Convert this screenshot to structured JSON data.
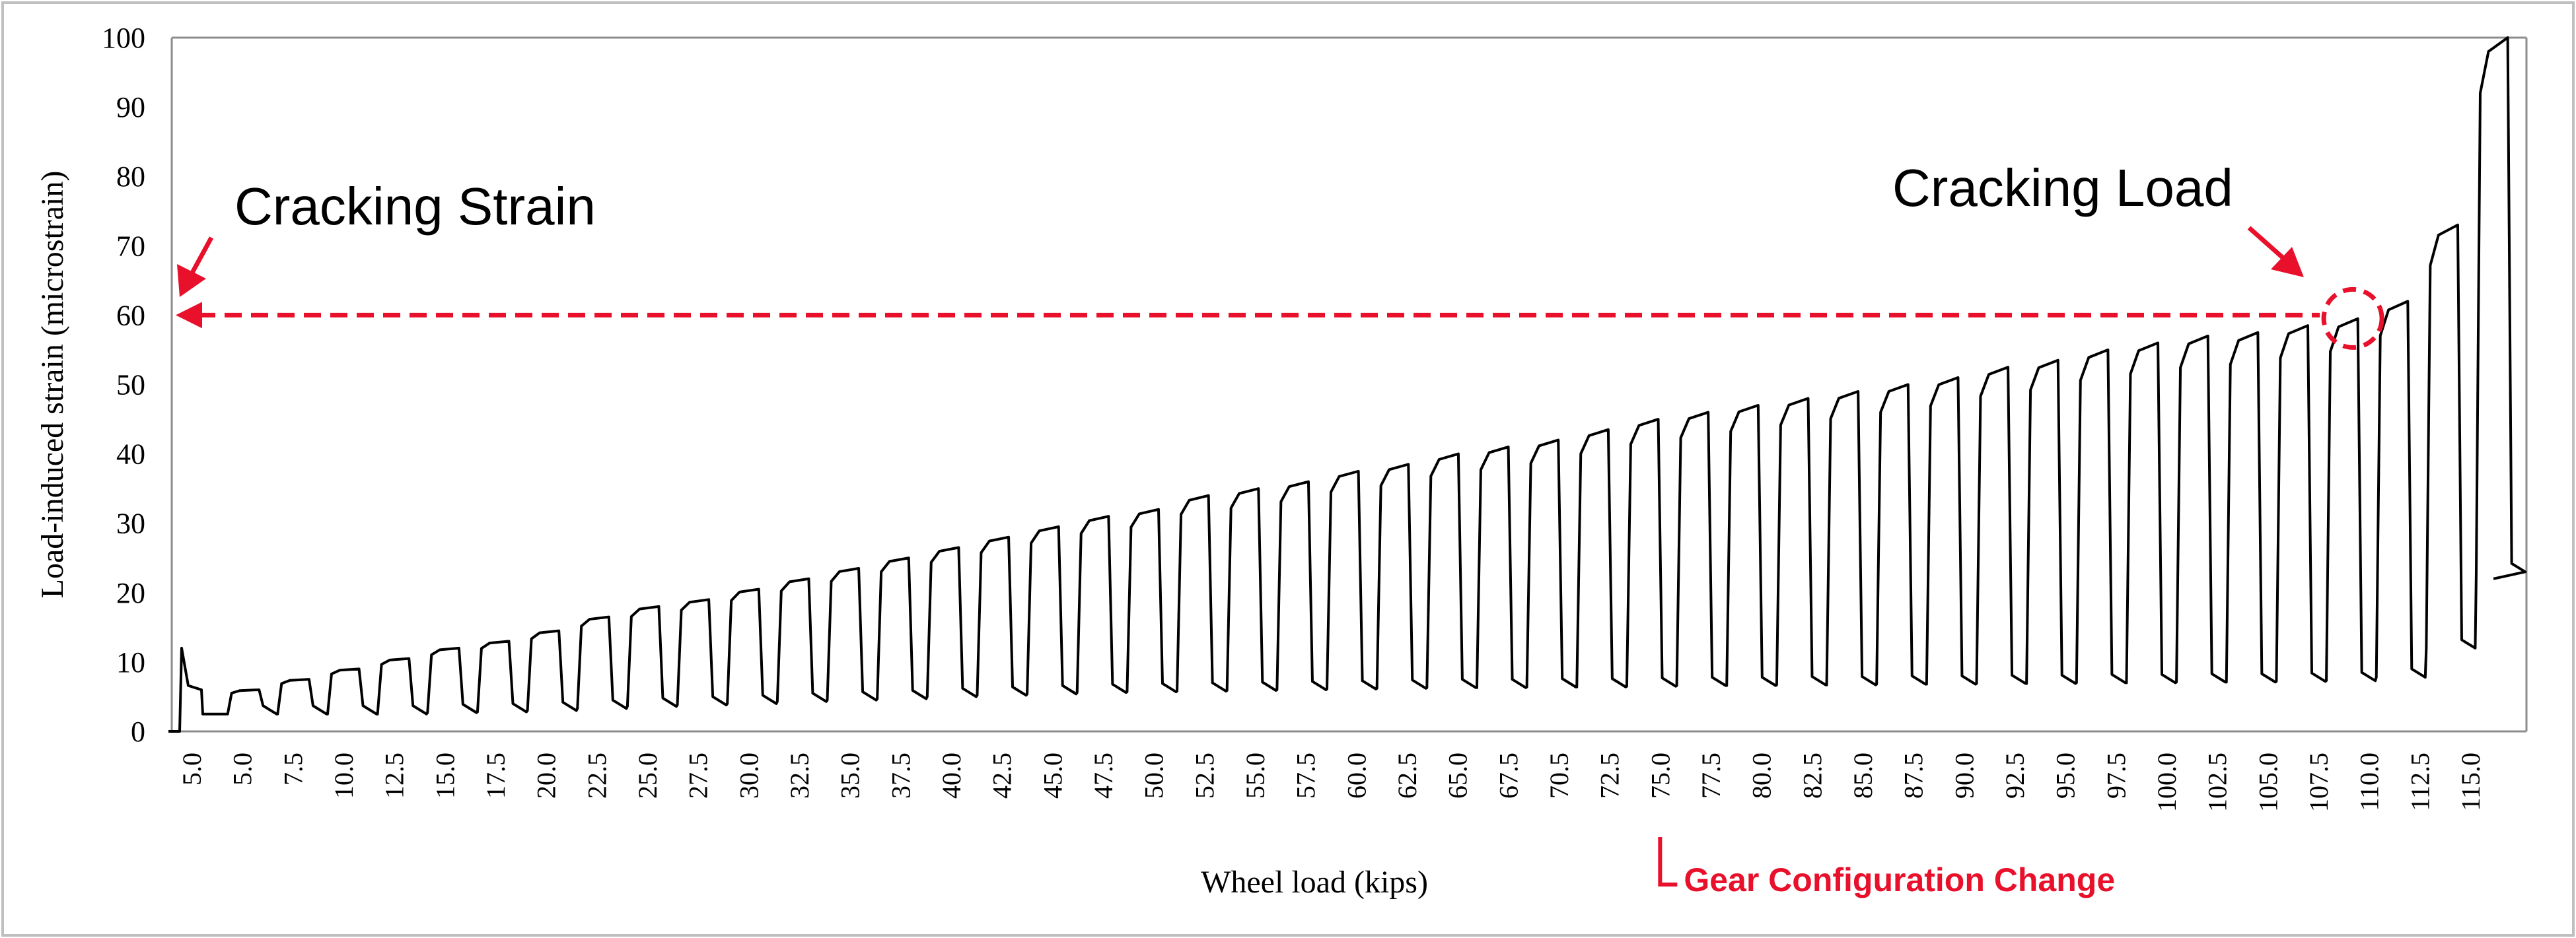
{
  "chart_data": {
    "type": "line",
    "title": "",
    "xlabel": "Wheel load (kips)",
    "ylabel": "Load-induced strain (microstrain)",
    "ylim": [
      0,
      100
    ],
    "y_ticks": [
      0,
      10,
      20,
      30,
      40,
      50,
      60,
      70,
      80,
      90,
      100
    ],
    "x_tick_labels": [
      "5.0",
      "5.0",
      "7.5",
      "10.0",
      "12.5",
      "15.0",
      "17.5",
      "20.0",
      "22.5",
      "25.0",
      "27.5",
      "30.0",
      "32.5",
      "35.0",
      "37.5",
      "40.0",
      "42.5",
      "45.0",
      "47.5",
      "50.0",
      "52.5",
      "55.0",
      "57.5",
      "60.0",
      "62.5",
      "65.0",
      "67.5",
      "70.5",
      "72.5",
      "75.0",
      "77.5",
      "80.0",
      "82.5",
      "85.0",
      "87.5",
      "90.0",
      "92.5",
      "95.0",
      "97.5",
      "100.0",
      "102.5",
      "105.0",
      "107.5",
      "110.0",
      "112.5",
      "115.0"
    ],
    "highlighted_tick": "75.0",
    "series": [
      {
        "peaks": [
          12,
          6,
          7.5,
          9,
          10.5,
          12,
          13,
          14.5,
          16.5,
          18,
          19,
          20.5,
          22,
          23.5,
          25,
          26.5,
          28,
          29.5,
          31,
          32,
          34,
          35,
          36,
          37.5,
          38.5,
          40,
          41,
          42,
          43.5,
          45,
          46,
          47,
          48,
          49,
          50,
          51,
          52.5,
          53.5,
          55,
          56,
          57,
          57.5,
          58.5,
          59.5,
          62,
          73,
          100
        ],
        "baselines": [
          0,
          2.5,
          2.5,
          2.5,
          2.5,
          2.7,
          2.8,
          3,
          3.3,
          3.6,
          3.8,
          4,
          4.3,
          4.5,
          4.7,
          5,
          5.2,
          5.4,
          5.6,
          5.7,
          5.8,
          5.9,
          6,
          6.1,
          6.2,
          6.3,
          6.3,
          6.4,
          6.4,
          6.5,
          6.6,
          6.6,
          6.7,
          6.7,
          6.8,
          6.8,
          6.9,
          6.9,
          7,
          7,
          7.1,
          7.1,
          7.2,
          7.3,
          7.8,
          12,
          23
        ],
        "end_value": 22
      }
    ],
    "annotations": {
      "cracking_strain": {
        "label": "Cracking Strain",
        "value": 60
      },
      "cracking_load": {
        "label": "Cracking Load",
        "value": 60
      },
      "gear_change": {
        "label": "Gear Configuration Change"
      }
    },
    "colors": {
      "line": "#000000",
      "annotation": "#e8102a",
      "frame": "#bfbfbf",
      "axis": "#8c8c8c"
    },
    "grid": false,
    "legend": "none"
  }
}
